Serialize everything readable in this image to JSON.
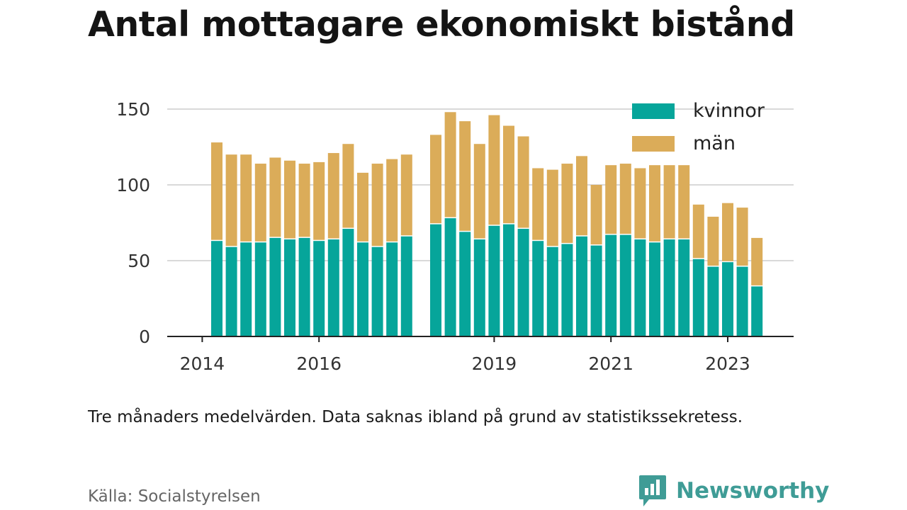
{
  "title": "Antal mottagare ekonomiskt bistånd",
  "note": "Tre månaders medelvärden. Data saknas ibland på grund av statistikssekretess.",
  "source": "Källa: Socialstyrelsen",
  "brand": {
    "name": "Newsworthy",
    "icon": "newsworthy-logo-icon",
    "color": "#3f9c96"
  },
  "chart_data": {
    "type": "bar",
    "stacked": true,
    "xlabel": "",
    "ylabel": "",
    "ylim": [
      0,
      160
    ],
    "yticks": [
      0,
      50,
      100,
      150
    ],
    "xticks": [
      "2014",
      "2016",
      "2019",
      "2021",
      "2023"
    ],
    "grid": true,
    "legend": "top-right",
    "series": [
      {
        "name": "kvinnor",
        "color": "#06a59a",
        "values": [
          63,
          59,
          62,
          62,
          65,
          64,
          65,
          63,
          64,
          71,
          62,
          59,
          62,
          66,
          null,
          74,
          78,
          69,
          64,
          73,
          74,
          71,
          63,
          59,
          61,
          66,
          60,
          67,
          67,
          64,
          62,
          64,
          64,
          51,
          46,
          49,
          46,
          33
        ]
      },
      {
        "name": "män",
        "color": "#dbac59",
        "values": [
          65,
          61,
          58,
          52,
          53,
          52,
          49,
          52,
          57,
          56,
          46,
          55,
          55,
          54,
          null,
          59,
          70,
          73,
          63,
          73,
          65,
          61,
          48,
          51,
          53,
          53,
          40,
          46,
          47,
          47,
          51,
          49,
          49,
          36,
          33,
          39,
          39,
          32
        ]
      }
    ],
    "categories": [
      "2014-Q2",
      "2014-Q3",
      "2014-Q4",
      "2015-Q1",
      "2015-Q2",
      "2015-Q3",
      "2015-Q4",
      "2016-Q1",
      "2016-Q2",
      "2016-Q3",
      "2016-Q4",
      "2017-Q1",
      "2017-Q2",
      "2017-Q3",
      "2017-Q4",
      "2018-Q1",
      "2018-Q2",
      "2018-Q3",
      "2018-Q4",
      "2019-Q1",
      "2019-Q2",
      "2019-Q3",
      "2019-Q4",
      "2020-Q1",
      "2020-Q2",
      "2020-Q3",
      "2020-Q4",
      "2021-Q1",
      "2021-Q2",
      "2021-Q3",
      "2021-Q4",
      "2022-Q1",
      "2022-Q2",
      "2022-Q3",
      "2022-Q4",
      "2023-Q1",
      "2023-Q2",
      "2023-Q3"
    ]
  }
}
